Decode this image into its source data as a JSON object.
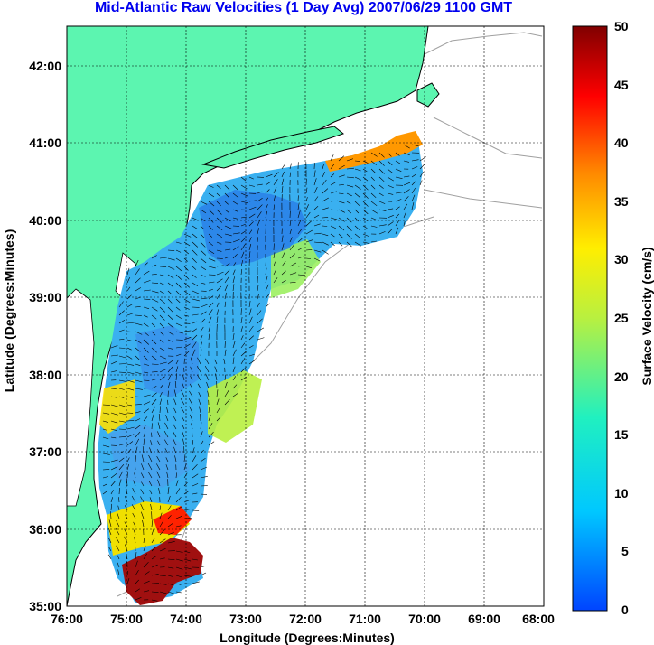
{
  "title": "Mid-Atlantic Raw Velocities (1 Day Avg) 2007/06/29 1100 GMT",
  "map": {
    "xlabel": "Longitude (Degrees:Minutes)",
    "ylabel": "Latitude (Degrees:Minutes)",
    "xticks": [
      "76:00",
      "75:00",
      "74:00",
      "73:00",
      "72:00",
      "71:00",
      "70:00",
      "69:00",
      "68:00"
    ],
    "yticks": [
      "42:00",
      "41:00",
      "40:00",
      "39:00",
      "38:00",
      "37:00",
      "36:00",
      "35:00"
    ],
    "lon_range": [
      -76,
      -68
    ],
    "lat_range": [
      35,
      42.5
    ],
    "grid": true,
    "land_color": "#5cf5b0",
    "coast_line_color": "#000000",
    "bathymetry_line_color": "#a0a0a0"
  },
  "colorbar": {
    "label": "Surface Velocity (cm/s)",
    "ticks": [
      "50",
      "45",
      "40",
      "35",
      "30",
      "25",
      "20",
      "15",
      "10",
      "5",
      "0"
    ],
    "range": [
      0,
      50
    ],
    "colormap": "jet"
  }
}
